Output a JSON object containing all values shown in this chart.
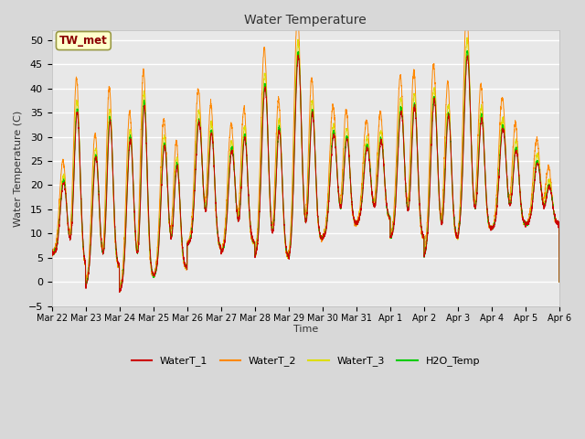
{
  "title": "Water Temperature",
  "ylabel": "Water Temperature (C)",
  "xlabel": "Time",
  "ylim": [
    -5,
    52
  ],
  "yticks": [
    -5,
    0,
    5,
    10,
    15,
    20,
    25,
    30,
    35,
    40,
    45,
    50
  ],
  "background_color": "#d8d8d8",
  "plot_bg_color": "#e8e8e8",
  "annotation_text": "TW_met",
  "annotation_color": "#8b0000",
  "annotation_bg": "#ffffcc",
  "annotation_border": "#999944",
  "series_colors": {
    "WaterT_1": "#cc0000",
    "WaterT_2": "#ff8800",
    "WaterT_3": "#dddd00",
    "H2O_Temp": "#00cc00"
  },
  "x_tick_labels": [
    "Mar 22",
    "Mar 23",
    "Mar 24",
    "Mar 25",
    "Mar 26",
    "Mar 27",
    "Mar 28",
    "Mar 29",
    "Mar 30",
    "Mar 31",
    "Apr 1",
    "Apr 2",
    "Apr 3",
    "Apr 4",
    "Apr 5",
    "Apr 6"
  ],
  "n_points": 3600,
  "seed": 12345,
  "day_peaks": [
    {
      "peak1": 22,
      "base1": 6,
      "peak2": 35,
      "base2": 3,
      "t1": 0.35,
      "t2": 0.75
    },
    {
      "peak1": 25,
      "base1": -1,
      "peak2": 35,
      "base2": 3,
      "t1": 0.3,
      "t2": 0.72
    },
    {
      "peak1": 29,
      "base1": -2,
      "peak2": 38,
      "base2": 1,
      "t1": 0.32,
      "t2": 0.73
    },
    {
      "peak1": 28,
      "base1": 1,
      "peak2": 25,
      "base2": 3,
      "t1": 0.33,
      "t2": 0.7
    },
    {
      "peak1": 34,
      "base1": 8,
      "peak2": 31,
      "base2": 7,
      "t1": 0.35,
      "t2": 0.72
    },
    {
      "peak1": 27,
      "base1": 6,
      "peak2": 31,
      "base2": 8,
      "t1": 0.32,
      "t2": 0.7
    },
    {
      "peak1": 41,
      "base1": 5,
      "peak2": 32,
      "base2": 5,
      "t1": 0.3,
      "t2": 0.72
    },
    {
      "peak1": 46,
      "base1": 4,
      "peak2": 37,
      "base2": 9,
      "t1": 0.28,
      "t2": 0.7
    },
    {
      "peak1": 30,
      "base1": 9,
      "peak2": 31,
      "base2": 12,
      "t1": 0.33,
      "t2": 0.72
    },
    {
      "peak1": 28,
      "base1": 12,
      "peak2": 30,
      "base2": 13,
      "t1": 0.32,
      "t2": 0.73
    },
    {
      "peak1": 36,
      "base1": 9,
      "peak2": 37,
      "base2": 9,
      "t1": 0.32,
      "t2": 0.72
    },
    {
      "peak1": 37,
      "base1": 5,
      "peak2": 36,
      "base2": 9,
      "t1": 0.3,
      "t2": 0.72
    },
    {
      "peak1": 47,
      "base1": 9,
      "peak2": 35,
      "base2": 11,
      "t1": 0.28,
      "t2": 0.7
    },
    {
      "peak1": 32,
      "base1": 11,
      "peak2": 28,
      "base2": 12,
      "t1": 0.33,
      "t2": 0.72
    },
    {
      "peak1": 25,
      "base1": 12,
      "peak2": 20,
      "base2": 12,
      "t1": 0.35,
      "t2": 0.7
    }
  ]
}
